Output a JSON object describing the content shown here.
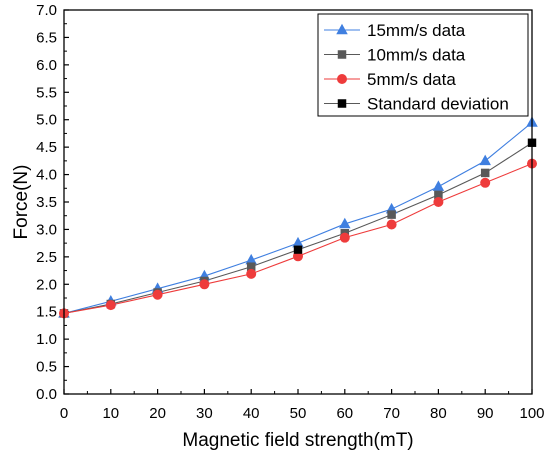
{
  "chart_data": {
    "type": "line",
    "xlabel": "Magnetic field strength(mT)",
    "ylabel": "Force(N)",
    "xlim": [
      0,
      100
    ],
    "ylim": [
      0,
      7
    ],
    "x": [
      0,
      10,
      20,
      30,
      40,
      50,
      60,
      70,
      80,
      90,
      100
    ],
    "xticks": [
      "0",
      "10",
      "20",
      "30",
      "40",
      "50",
      "60",
      "70",
      "80",
      "90",
      "100"
    ],
    "yticks": [
      "0.0",
      "0.5",
      "1.0",
      "1.5",
      "2.0",
      "2.5",
      "3.0",
      "3.5",
      "4.0",
      "4.5",
      "5.0",
      "5.5",
      "6.0",
      "6.5",
      "7.0"
    ],
    "legend_position": "top-right",
    "series": [
      {
        "name": "15mm/s data",
        "marker": "triangle",
        "color": "#3f7fe0",
        "values": [
          1.47,
          1.69,
          1.92,
          2.15,
          2.44,
          2.75,
          3.1,
          3.37,
          3.78,
          4.25,
          4.95
        ]
      },
      {
        "name": "10mm/s data",
        "marker": "square",
        "color": "#595959",
        "values": [
          1.47,
          1.64,
          1.85,
          2.06,
          2.32,
          2.63,
          2.93,
          3.27,
          3.63,
          4.03,
          4.58
        ]
      },
      {
        "name": " 5mm/s data",
        "marker": "circle",
        "color": "#ee3b3b",
        "values": [
          1.47,
          1.62,
          1.81,
          2.0,
          2.19,
          2.51,
          2.85,
          3.09,
          3.5,
          3.85,
          4.2
        ]
      }
    ],
    "standard_deviation": {
      "name": "Standard deviation",
      "marker": "square",
      "color": "#000000",
      "points": [
        {
          "x": 50,
          "y": 2.63
        },
        {
          "x": 100,
          "y": 4.58
        }
      ]
    }
  }
}
